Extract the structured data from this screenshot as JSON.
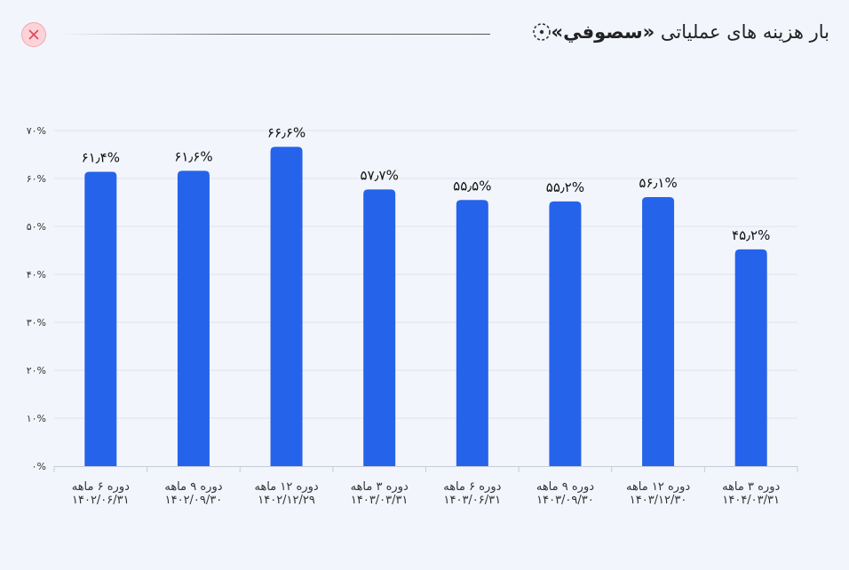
{
  "header": {
    "title_prefix": "بار هزینه های عملیاتی ",
    "title_company": "«سصوفي»"
  },
  "colors": {
    "bar": "#2563eb",
    "grid": "#dde2ec",
    "close_bg": "#fbd3d8",
    "close_x": "#e0455a"
  },
  "icons": {
    "title": "dashed-circle-icon",
    "close": "close-icon"
  },
  "chart_data": {
    "type": "bar",
    "categories": [
      [
        "دوره ۶ ماهه",
        "۱۴۰۲/۰۶/۳۱"
      ],
      [
        "دوره ۹ ماهه",
        "۱۴۰۲/۰۹/۳۰"
      ],
      [
        "دوره ۱۲ ماهه",
        "۱۴۰۲/۱۲/۲۹"
      ],
      [
        "دوره ۳ ماهه",
        "۱۴۰۳/۰۳/۳۱"
      ],
      [
        "دوره ۶ ماهه",
        "۱۴۰۳/۰۶/۳۱"
      ],
      [
        "دوره ۹ ماهه",
        "۱۴۰۳/۰۹/۳۰"
      ],
      [
        "دوره ۱۲ ماهه",
        "۱۴۰۳/۱۲/۳۰"
      ],
      [
        "دوره ۳ ماهه",
        "۱۴۰۴/۰۳/۳۱"
      ]
    ],
    "values": [
      61.4,
      61.6,
      66.6,
      57.7,
      55.5,
      55.2,
      56.1,
      45.2
    ],
    "data_labels": [
      "۶۱٫۴%",
      "۶۱٫۶%",
      "۶۶٫۶%",
      "۵۷٫۷%",
      "۵۵٫۵%",
      "۵۵٫۲%",
      "۵۶٫۱%",
      "۴۵٫۲%"
    ],
    "ylim": [
      0,
      70
    ],
    "yticks": [
      0,
      10,
      20,
      30,
      40,
      50,
      60,
      70
    ],
    "ytick_labels": [
      "۰%",
      "۱۰%",
      "۲۰%",
      "۳۰%",
      "۴۰%",
      "۵۰%",
      "۶۰%",
      "۷۰%"
    ],
    "grid": true
  }
}
